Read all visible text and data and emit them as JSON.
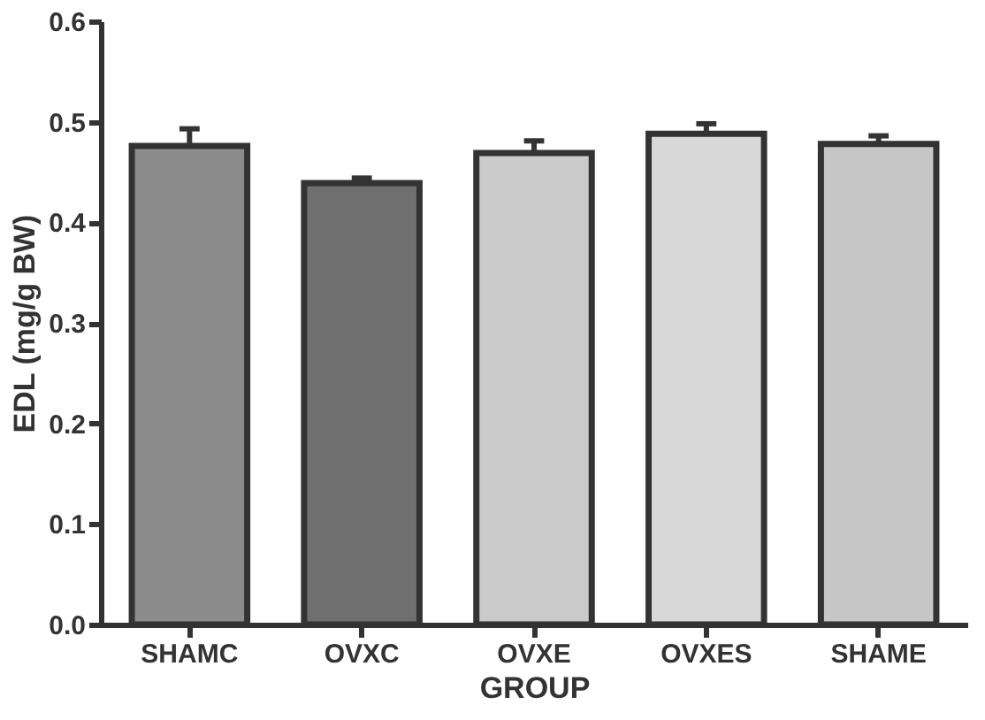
{
  "chart_data": {
    "type": "bar",
    "xlabel": "GROUP",
    "ylabel": "EDL (mg/g BW)",
    "categories": [
      "SHAMC",
      "OVXC",
      "OVXE",
      "OVXES",
      "SHAME"
    ],
    "values": [
      0.476,
      0.439,
      0.469,
      0.488,
      0.478
    ],
    "errors": [
      [
        0.476,
        0.493
      ],
      [
        0.439,
        0.444
      ],
      [
        0.469,
        0.481
      ],
      [
        0.488,
        0.498
      ],
      [
        0.478,
        0.486
      ]
    ],
    "colors": [
      "#8c8c8c",
      "#6f6f6f",
      "#cacaca",
      "#d8d8d8",
      "#c6c6c6"
    ],
    "ylim": [
      0,
      0.6
    ],
    "yticks": [
      {
        "value": 0,
        "label": "0.0"
      },
      0.1,
      0.2,
      0.3,
      0.4,
      0.5,
      0.6
    ],
    "grid": false,
    "legend": false
  }
}
